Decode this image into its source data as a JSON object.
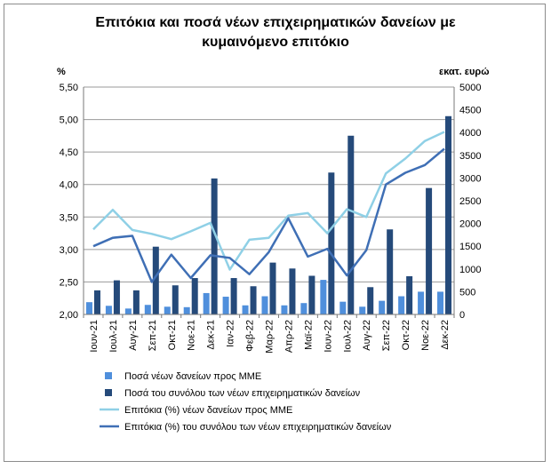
{
  "chart_data": {
    "type": "bar",
    "title": "Επιτόκια και ποσά νέων επιχειρηματικών δανείων με κυμαινόμενο επιτόκιο",
    "title_line1": "Επιτόκια και ποσά νέων επιχειρηματικών δανείων με",
    "title_line2": "κυμαινόμενο επιτόκιο",
    "ylabel_left": "%",
    "ylabel_right": "εκατ. ευρώ",
    "ylim_left": [
      2.0,
      5.5
    ],
    "ylim_right": [
      0,
      5000
    ],
    "yticks_left": [
      "2,00",
      "2,50",
      "3,00",
      "3,50",
      "4,00",
      "4,50",
      "5,00",
      "5,50"
    ],
    "yticks_right": [
      "0",
      "500",
      "1000",
      "1500",
      "2000",
      "2500",
      "3000",
      "3500",
      "4000",
      "4500",
      "5000"
    ],
    "categories": [
      "Ιουν-21",
      "Ιουλ-21",
      "Αυγ-21",
      "Σεπ-21",
      "Οκτ-21",
      "Νοε-21",
      "Δεκ-21",
      "Ιαν-22",
      "Φεβ-22",
      "Μαρ-22",
      "Απρ-22",
      "Μαϊ-22",
      "Ιουν-22",
      "Ιουλ-22",
      "Αυγ-22",
      "Σεπ-22",
      "Οκτ-22",
      "Νοε-22",
      "Δεκ-22"
    ],
    "series": [
      {
        "name": "Ποσά νέων δανείων προς ΜΜΕ",
        "kind": "bar",
        "axis": "right",
        "color": "#4f8fdc",
        "values": [
          270,
          190,
          130,
          210,
          170,
          160,
          470,
          390,
          200,
          400,
          200,
          250,
          760,
          280,
          170,
          300,
          400,
          500,
          500
        ]
      },
      {
        "name": "Ποσά του συνόλου των νέων επιχειρηματικών δανείων",
        "kind": "bar",
        "axis": "right",
        "color": "#254a7a",
        "values": [
          530,
          750,
          530,
          1490,
          640,
          800,
          2990,
          800,
          620,
          1140,
          1010,
          850,
          3120,
          3930,
          600,
          1870,
          840,
          2780,
          4360
        ]
      },
      {
        "name": "Επιτόκια (%) νέων δανείων προς ΜΜΕ",
        "kind": "line",
        "axis": "left",
        "color": "#8fd0e6",
        "values": [
          3.31,
          3.61,
          3.3,
          3.24,
          3.16,
          3.28,
          3.41,
          2.69,
          3.15,
          3.18,
          3.52,
          3.56,
          3.25,
          3.62,
          3.5,
          4.17,
          4.4,
          4.67,
          4.81
        ]
      },
      {
        "name": "Επιτόκια (%) του συνόλου των νέων επιχειρηματικών δανείων",
        "kind": "line",
        "axis": "left",
        "color": "#3f6fb5",
        "values": [
          3.05,
          3.18,
          3.21,
          2.5,
          2.92,
          2.56,
          2.91,
          2.87,
          2.62,
          2.96,
          3.48,
          2.89,
          3.01,
          2.6,
          2.99,
          4.0,
          4.18,
          4.3,
          4.55
        ]
      }
    ],
    "grid": true,
    "legend_position": "bottom"
  }
}
